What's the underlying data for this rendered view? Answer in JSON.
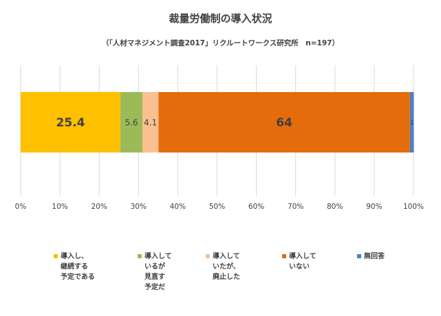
{
  "chart_data": {
    "type": "bar",
    "orientation": "horizontal",
    "stacked": true,
    "title": "裁量労働制の導入状況",
    "subtitle": "（「人材マネジメント調査2017」リクルートワークス研究所　n=197）",
    "series": [
      {
        "name": "導入し、\n継続する\n予定である",
        "value": 25.4,
        "label": "25.4",
        "color": "#FFC000"
      },
      {
        "name": "導入して\nいるが\n見直す\n予定だ",
        "value": 5.6,
        "label": "5.6",
        "color": "#9BBB59"
      },
      {
        "name": "導入して\nいたが、\n廃止した",
        "value": 4.1,
        "label": "4.1",
        "color": "#FAC090"
      },
      {
        "name": "導入して\nいない",
        "value": 64,
        "label": "64",
        "color": "#E46C0A"
      },
      {
        "name": "無回答",
        "value": 1,
        "label": "1",
        "color": "#4F81BD"
      }
    ],
    "xlim": [
      0,
      100
    ],
    "x_ticks": [
      "0%",
      "10%",
      "20%",
      "30%",
      "40%",
      "50%",
      "60%",
      "70%",
      "80%",
      "90%",
      "100%"
    ],
    "grid": true,
    "legend": "bottom"
  }
}
